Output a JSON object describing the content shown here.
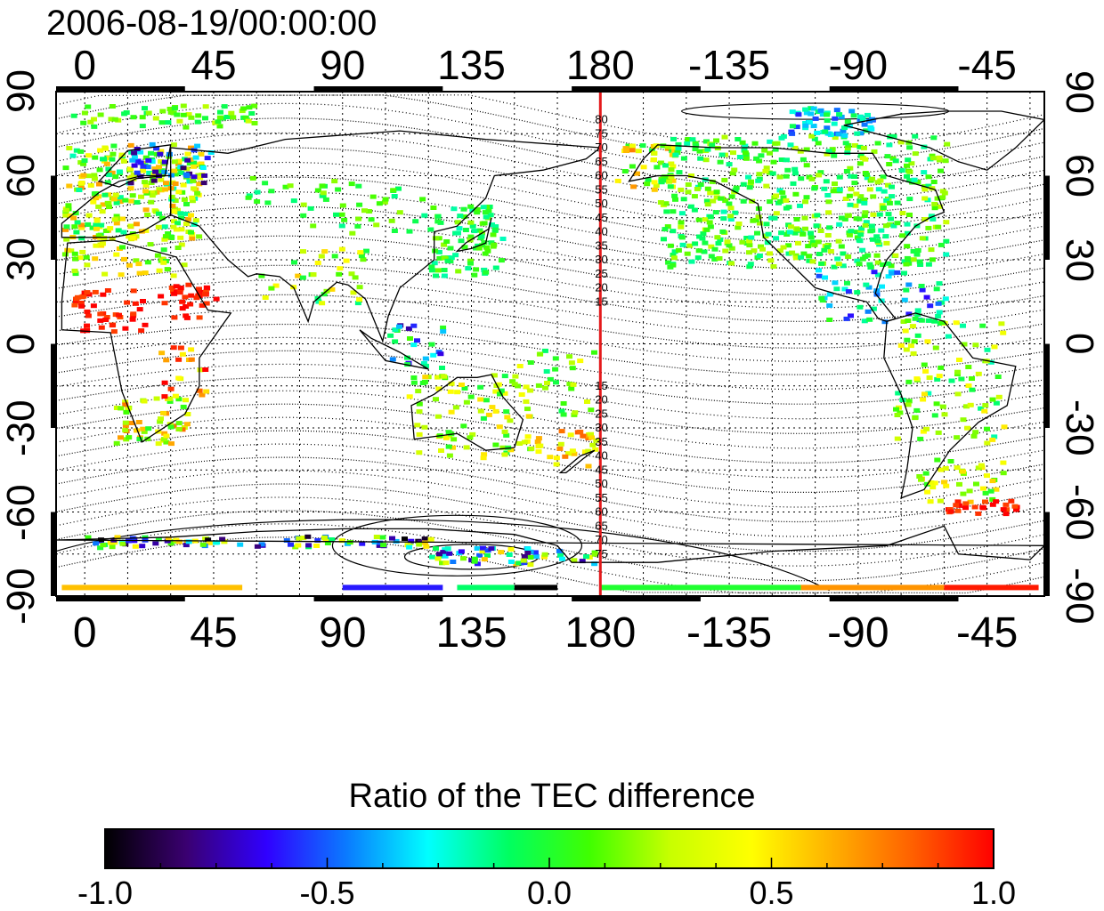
{
  "title": "2006-08-19/00:00:00",
  "map": {
    "lon_ticks_bottom": [
      "0",
      "45",
      "90",
      "135",
      "180",
      "-135",
      "-90",
      "-45"
    ],
    "lon_ticks_top": [
      "0",
      "45",
      "90",
      "135",
      "180",
      "-135",
      "-90",
      "-45"
    ],
    "lat_ticks_left": [
      "90",
      "60",
      "30",
      "0",
      "-30",
      "-60",
      "-90"
    ],
    "lat_ticks_right": [
      "90",
      "60",
      "30",
      "0",
      "-30",
      "-60",
      "-90"
    ],
    "lon_range": [
      -10,
      335
    ],
    "lat_range": [
      -90,
      90
    ],
    "grid": "dotted every 15 degrees",
    "meridian_marker": {
      "lon": 180,
      "color": "#e41a1c"
    },
    "meridian_labels_north": [
      "80",
      "75",
      "70",
      "65",
      "60",
      "55",
      "50",
      "45",
      "40",
      "35",
      "30",
      "25",
      "20",
      "15"
    ],
    "meridian_labels_south": [
      "15",
      "20",
      "25",
      "30",
      "35",
      "40",
      "45",
      "50",
      "55",
      "60",
      "65",
      "70",
      "75"
    ]
  },
  "colorbar": {
    "title": "Ratio of the TEC difference",
    "ticks": [
      "-1.0",
      "-0.5",
      "0.0",
      "0.5",
      "1.0"
    ],
    "range": [
      -1.0,
      1.0
    ],
    "colormap": [
      "#000000",
      "#3a0070",
      "#3000ff",
      "#0a7cff",
      "#00ffff",
      "#00ff60",
      "#40ff00",
      "#c8ff00",
      "#ffff00",
      "#ffb000",
      "#ff6000",
      "#ff0000"
    ]
  }
}
